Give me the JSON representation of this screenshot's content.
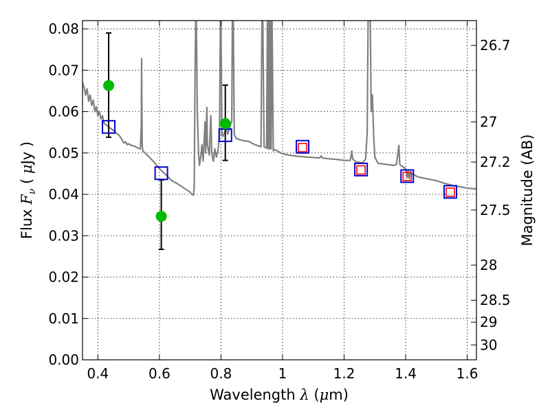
{
  "chart_data": {
    "type": "scatter",
    "title": "",
    "xlabel": {
      "prefix": "Wavelength",
      "symbol": "λ",
      "unit_open": "(",
      "unit_mu": "μ",
      "unit_rest": "m)"
    },
    "ylabel": {
      "prefix": "Flux",
      "symbol": "F",
      "subscript": "ν",
      "unit_open": "(",
      "unit_mu": "μ",
      "unit_rest": "Jy )"
    },
    "y2label": "Magnitude (AB)",
    "xlim": [
      0.35,
      1.63
    ],
    "ylim": [
      0.0,
      0.082
    ],
    "grid": true,
    "x_ticks": [
      {
        "v": 0.4,
        "label": "0.4"
      },
      {
        "v": 0.6,
        "label": "0.6"
      },
      {
        "v": 0.8,
        "label": "0.8"
      },
      {
        "v": 1.0,
        "label": "1"
      },
      {
        "v": 1.2,
        "label": "1.2"
      },
      {
        "v": 1.4,
        "label": "1.4"
      },
      {
        "v": 1.6,
        "label": "1.6"
      }
    ],
    "y_ticks": [
      {
        "v": 0.0,
        "label": "0.00"
      },
      {
        "v": 0.01,
        "label": "0.01"
      },
      {
        "v": 0.02,
        "label": "0.02"
      },
      {
        "v": 0.03,
        "label": "0.03"
      },
      {
        "v": 0.04,
        "label": "0.04"
      },
      {
        "v": 0.05,
        "label": "0.05"
      },
      {
        "v": 0.06,
        "label": "0.06"
      },
      {
        "v": 0.07,
        "label": "0.07"
      },
      {
        "v": 0.08,
        "label": "0.08"
      }
    ],
    "y2_ticks": [
      {
        "flux": 0.076,
        "label": "26.7"
      },
      {
        "flux": 0.0575,
        "label": "27"
      },
      {
        "flux": 0.0478,
        "label": "27.2"
      },
      {
        "flux": 0.0362,
        "label": "27.5"
      },
      {
        "flux": 0.0229,
        "label": "28"
      },
      {
        "flux": 0.0144,
        "label": "28.5"
      },
      {
        "flux": 0.0091,
        "label": "29"
      },
      {
        "flux": 0.0036,
        "label": "30"
      }
    ],
    "series": [
      {
        "name": "model spectrum",
        "kind": "line",
        "color": "#808080",
        "points": [
          [
            0.35,
            0.067
          ],
          [
            0.355,
            0.066
          ],
          [
            0.36,
            0.064
          ],
          [
            0.365,
            0.0655
          ],
          [
            0.37,
            0.0625
          ],
          [
            0.375,
            0.064
          ],
          [
            0.38,
            0.0615
          ],
          [
            0.385,
            0.0628
          ],
          [
            0.39,
            0.06
          ],
          [
            0.395,
            0.0612
          ],
          [
            0.4,
            0.059
          ],
          [
            0.405,
            0.06
          ],
          [
            0.41,
            0.0582
          ],
          [
            0.415,
            0.059
          ],
          [
            0.42,
            0.0572
          ],
          [
            0.43,
            0.0566
          ],
          [
            0.44,
            0.056
          ],
          [
            0.45,
            0.0555
          ],
          [
            0.46,
            0.0548
          ],
          [
            0.47,
            0.0542
          ],
          [
            0.48,
            0.053
          ],
          [
            0.485,
            0.0524
          ],
          [
            0.49,
            0.0527
          ],
          [
            0.495,
            0.052
          ],
          [
            0.5,
            0.0522
          ],
          [
            0.51,
            0.0518
          ],
          [
            0.52,
            0.0516
          ],
          [
            0.53,
            0.0512
          ],
          [
            0.538,
            0.051
          ],
          [
            0.541,
            0.0565
          ],
          [
            0.542,
            0.0728
          ],
          [
            0.544,
            0.052
          ],
          [
            0.546,
            0.0505
          ],
          [
            0.56,
            0.0495
          ],
          [
            0.58,
            0.048
          ],
          [
            0.6,
            0.0462
          ],
          [
            0.62,
            0.0448
          ],
          [
            0.64,
            0.0433
          ],
          [
            0.66,
            0.0425
          ],
          [
            0.68,
            0.0415
          ],
          [
            0.7,
            0.0405
          ],
          [
            0.705,
            0.04
          ],
          [
            0.71,
            0.0398
          ],
          [
            0.713,
            0.0415
          ],
          [
            0.716,
            0.07
          ],
          [
            0.718,
            0.082
          ],
          [
            0.72,
            0.082
          ],
          [
            0.723,
            0.06
          ],
          [
            0.727,
            0.05
          ],
          [
            0.73,
            0.047
          ],
          [
            0.735,
            0.0495
          ],
          [
            0.738,
            0.052
          ],
          [
            0.742,
            0.048
          ],
          [
            0.748,
            0.0575
          ],
          [
            0.75,
            0.05
          ],
          [
            0.754,
            0.061
          ],
          [
            0.756,
            0.052
          ],
          [
            0.762,
            0.0495
          ],
          [
            0.767,
            0.059
          ],
          [
            0.77,
            0.05
          ],
          [
            0.775,
            0.048
          ],
          [
            0.78,
            0.051
          ],
          [
            0.785,
            0.049
          ],
          [
            0.79,
            0.0505
          ],
          [
            0.795,
            0.054
          ],
          [
            0.798,
            0.082
          ],
          [
            0.8,
            0.082
          ],
          [
            0.803,
            0.0545
          ],
          [
            0.806,
            0.054
          ],
          [
            0.812,
            0.055
          ],
          [
            0.818,
            0.056
          ],
          [
            0.822,
            0.0545
          ],
          [
            0.828,
            0.056
          ],
          [
            0.835,
            0.0578
          ],
          [
            0.837,
            0.082
          ],
          [
            0.84,
            0.082
          ],
          [
            0.843,
            0.0545
          ],
          [
            0.85,
            0.0535
          ],
          [
            0.87,
            0.053
          ],
          [
            0.89,
            0.0528
          ],
          [
            0.91,
            0.052
          ],
          [
            0.93,
            0.0515
          ],
          [
            0.933,
            0.082
          ],
          [
            0.936,
            0.082
          ],
          [
            0.94,
            0.0515
          ],
          [
            0.948,
            0.0512
          ],
          [
            0.951,
            0.082
          ],
          [
            0.953,
            0.051
          ],
          [
            0.956,
            0.082
          ],
          [
            0.958,
            0.051
          ],
          [
            0.961,
            0.082
          ],
          [
            0.963,
            0.051
          ],
          [
            0.966,
            0.082
          ],
          [
            0.97,
            0.0505
          ],
          [
            0.975,
            0.0508
          ],
          [
            1.0,
            0.0498
          ],
          [
            1.02,
            0.0495
          ],
          [
            1.05,
            0.0492
          ],
          [
            1.08,
            0.049
          ],
          [
            1.12,
            0.0488
          ],
          [
            1.125,
            0.0493
          ],
          [
            1.129,
            0.0488
          ],
          [
            1.15,
            0.0486
          ],
          [
            1.18,
            0.0484
          ],
          [
            1.2,
            0.0482
          ],
          [
            1.22,
            0.0482
          ],
          [
            1.225,
            0.0505
          ],
          [
            1.228,
            0.0485
          ],
          [
            1.24,
            0.0478
          ],
          [
            1.26,
            0.0476
          ],
          [
            1.27,
            0.0485
          ],
          [
            1.275,
            0.055
          ],
          [
            1.278,
            0.082
          ],
          [
            1.285,
            0.082
          ],
          [
            1.288,
            0.06
          ],
          [
            1.292,
            0.064
          ],
          [
            1.296,
            0.054
          ],
          [
            1.3,
            0.049
          ],
          [
            1.31,
            0.0475
          ],
          [
            1.34,
            0.0472
          ],
          [
            1.36,
            0.047
          ],
          [
            1.37,
            0.0472
          ],
          [
            1.375,
            0.05
          ],
          [
            1.378,
            0.0518
          ],
          [
            1.381,
            0.0472
          ],
          [
            1.4,
            0.0462
          ],
          [
            1.405,
            0.044
          ],
          [
            1.408,
            0.0458
          ],
          [
            1.412,
            0.0438
          ],
          [
            1.416,
            0.0455
          ],
          [
            1.42,
            0.045
          ],
          [
            1.44,
            0.0442
          ],
          [
            1.46,
            0.0439
          ],
          [
            1.48,
            0.0436
          ],
          [
            1.5,
            0.0433
          ],
          [
            1.52,
            0.0428
          ],
          [
            1.54,
            0.0424
          ],
          [
            1.56,
            0.042
          ],
          [
            1.58,
            0.0418
          ],
          [
            1.6,
            0.0415
          ],
          [
            1.63,
            0.0413
          ]
        ]
      },
      {
        "name": "photometry (green)",
        "kind": "points_with_errors",
        "color": "#00bb00",
        "points": [
          {
            "x": 0.435,
            "y": 0.0663,
            "err_hi": 0.079,
            "err_lo": 0.0538
          },
          {
            "x": 0.606,
            "y": 0.0347,
            "err_hi": 0.0435,
            "err_lo": 0.0267
          },
          {
            "x": 0.814,
            "y": 0.0571,
            "err_hi": 0.0664,
            "err_lo": 0.0482
          }
        ]
      },
      {
        "name": "model photometry (blue squares)",
        "kind": "open_squares",
        "color": "#0000cc",
        "points": [
          {
            "x": 0.435,
            "y": 0.0563
          },
          {
            "x": 0.606,
            "y": 0.0451
          },
          {
            "x": 0.814,
            "y": 0.0543
          },
          {
            "x": 1.065,
            "y": 0.0515
          },
          {
            "x": 1.255,
            "y": 0.046
          },
          {
            "x": 1.405,
            "y": 0.0444
          },
          {
            "x": 1.545,
            "y": 0.0406
          }
        ]
      },
      {
        "name": "observed photometry (red squares)",
        "kind": "open_squares",
        "color": "#ff0000",
        "points": [
          {
            "x": 1.065,
            "y": 0.0513
          },
          {
            "x": 1.255,
            "y": 0.0459
          },
          {
            "x": 1.405,
            "y": 0.0443
          },
          {
            "x": 1.545,
            "y": 0.0405
          }
        ]
      }
    ]
  }
}
